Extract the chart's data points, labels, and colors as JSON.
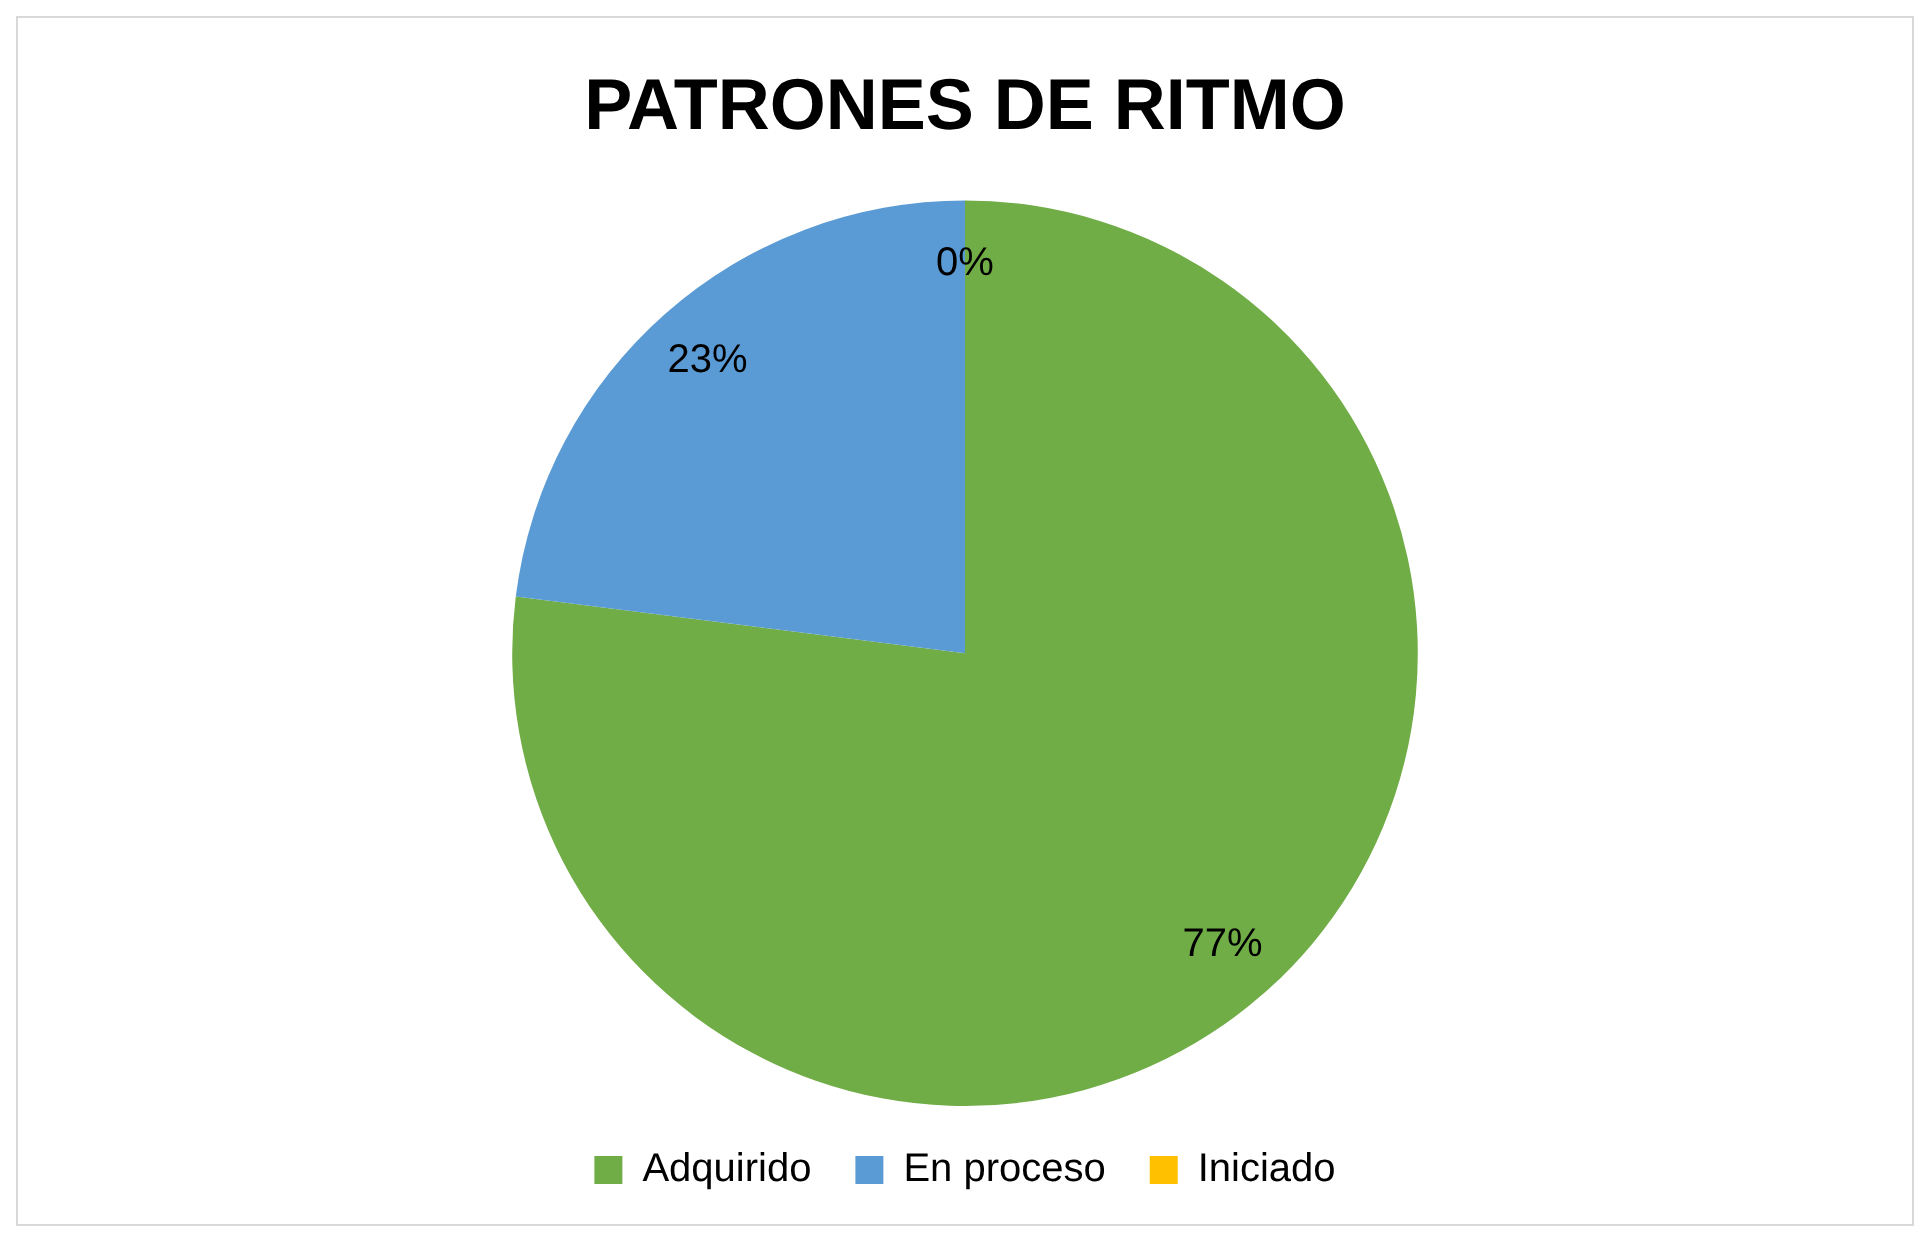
{
  "chart_data": {
    "type": "pie",
    "title": "PATRONES DE RITMO",
    "categories": [
      "Adquirido",
      "En proceso",
      "Iniciado"
    ],
    "values": [
      77,
      23,
      0
    ],
    "colors": [
      "#70ad47",
      "#5b9bd5",
      "#ffc000"
    ],
    "value_labels": [
      "77%",
      "23%",
      "0%"
    ],
    "legend": "bottom"
  }
}
